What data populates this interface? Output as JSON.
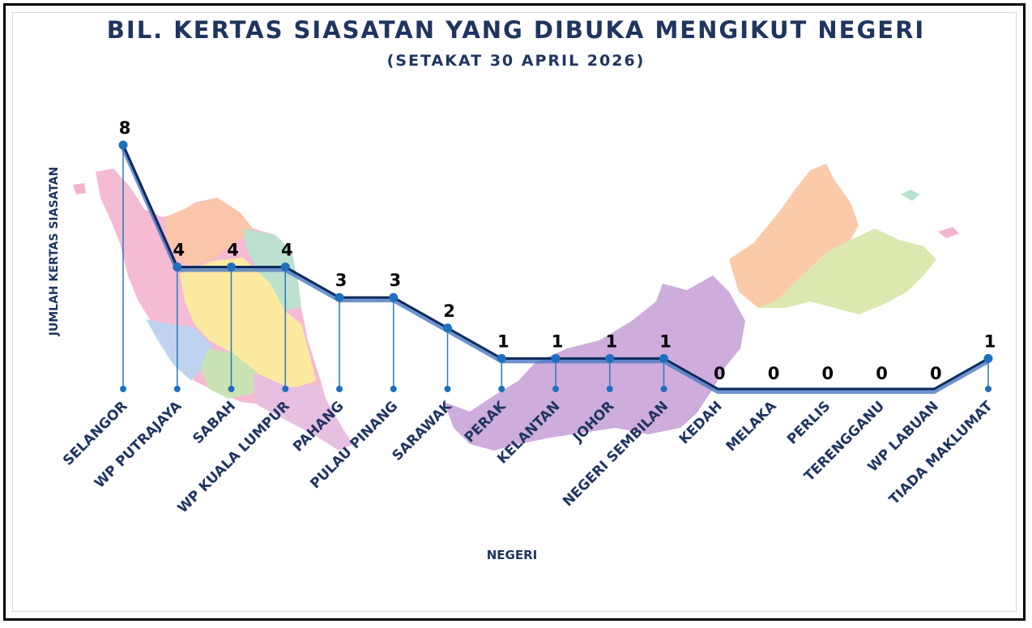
{
  "chart_data": {
    "type": "line",
    "title": "BIL. KERTAS SIASATAN YANG DIBUKA MENGIKUT NEGERI",
    "subtitle": "(SETAKAT 30 APRIL 2026)",
    "xlabel": "NEGERI",
    "ylabel": "JUMLAH KERTAS SIASATAN",
    "categories": [
      "SELANGOR",
      "WP PUTRAJAYA",
      "SABAH",
      "WP KUALA LUMPUR",
      "PAHANG",
      "PULAU PINANG",
      "SARAWAK",
      "PERAK",
      "KELANTAN",
      "JOHOR",
      "NEGERI SEMBILAN",
      "KEDAH",
      "MELAKA",
      "PERLIS",
      "TERENGGANU",
      "WP LABUAN",
      "TIADA MAKLUMAT"
    ],
    "values": [
      8,
      4,
      4,
      4,
      3,
      3,
      2,
      1,
      1,
      1,
      1,
      0,
      0,
      0,
      0,
      0,
      1
    ],
    "ylim": [
      0,
      8
    ],
    "grid": false,
    "legend": "none",
    "background": "map of Malaysia",
    "colors": {
      "line": "#0e2a5c",
      "line_shadow": "#4a78c2",
      "marker": "#1f6fbf",
      "drop_line": "#2b79b8",
      "text": "#1f3560",
      "data_label": "#000000"
    }
  }
}
